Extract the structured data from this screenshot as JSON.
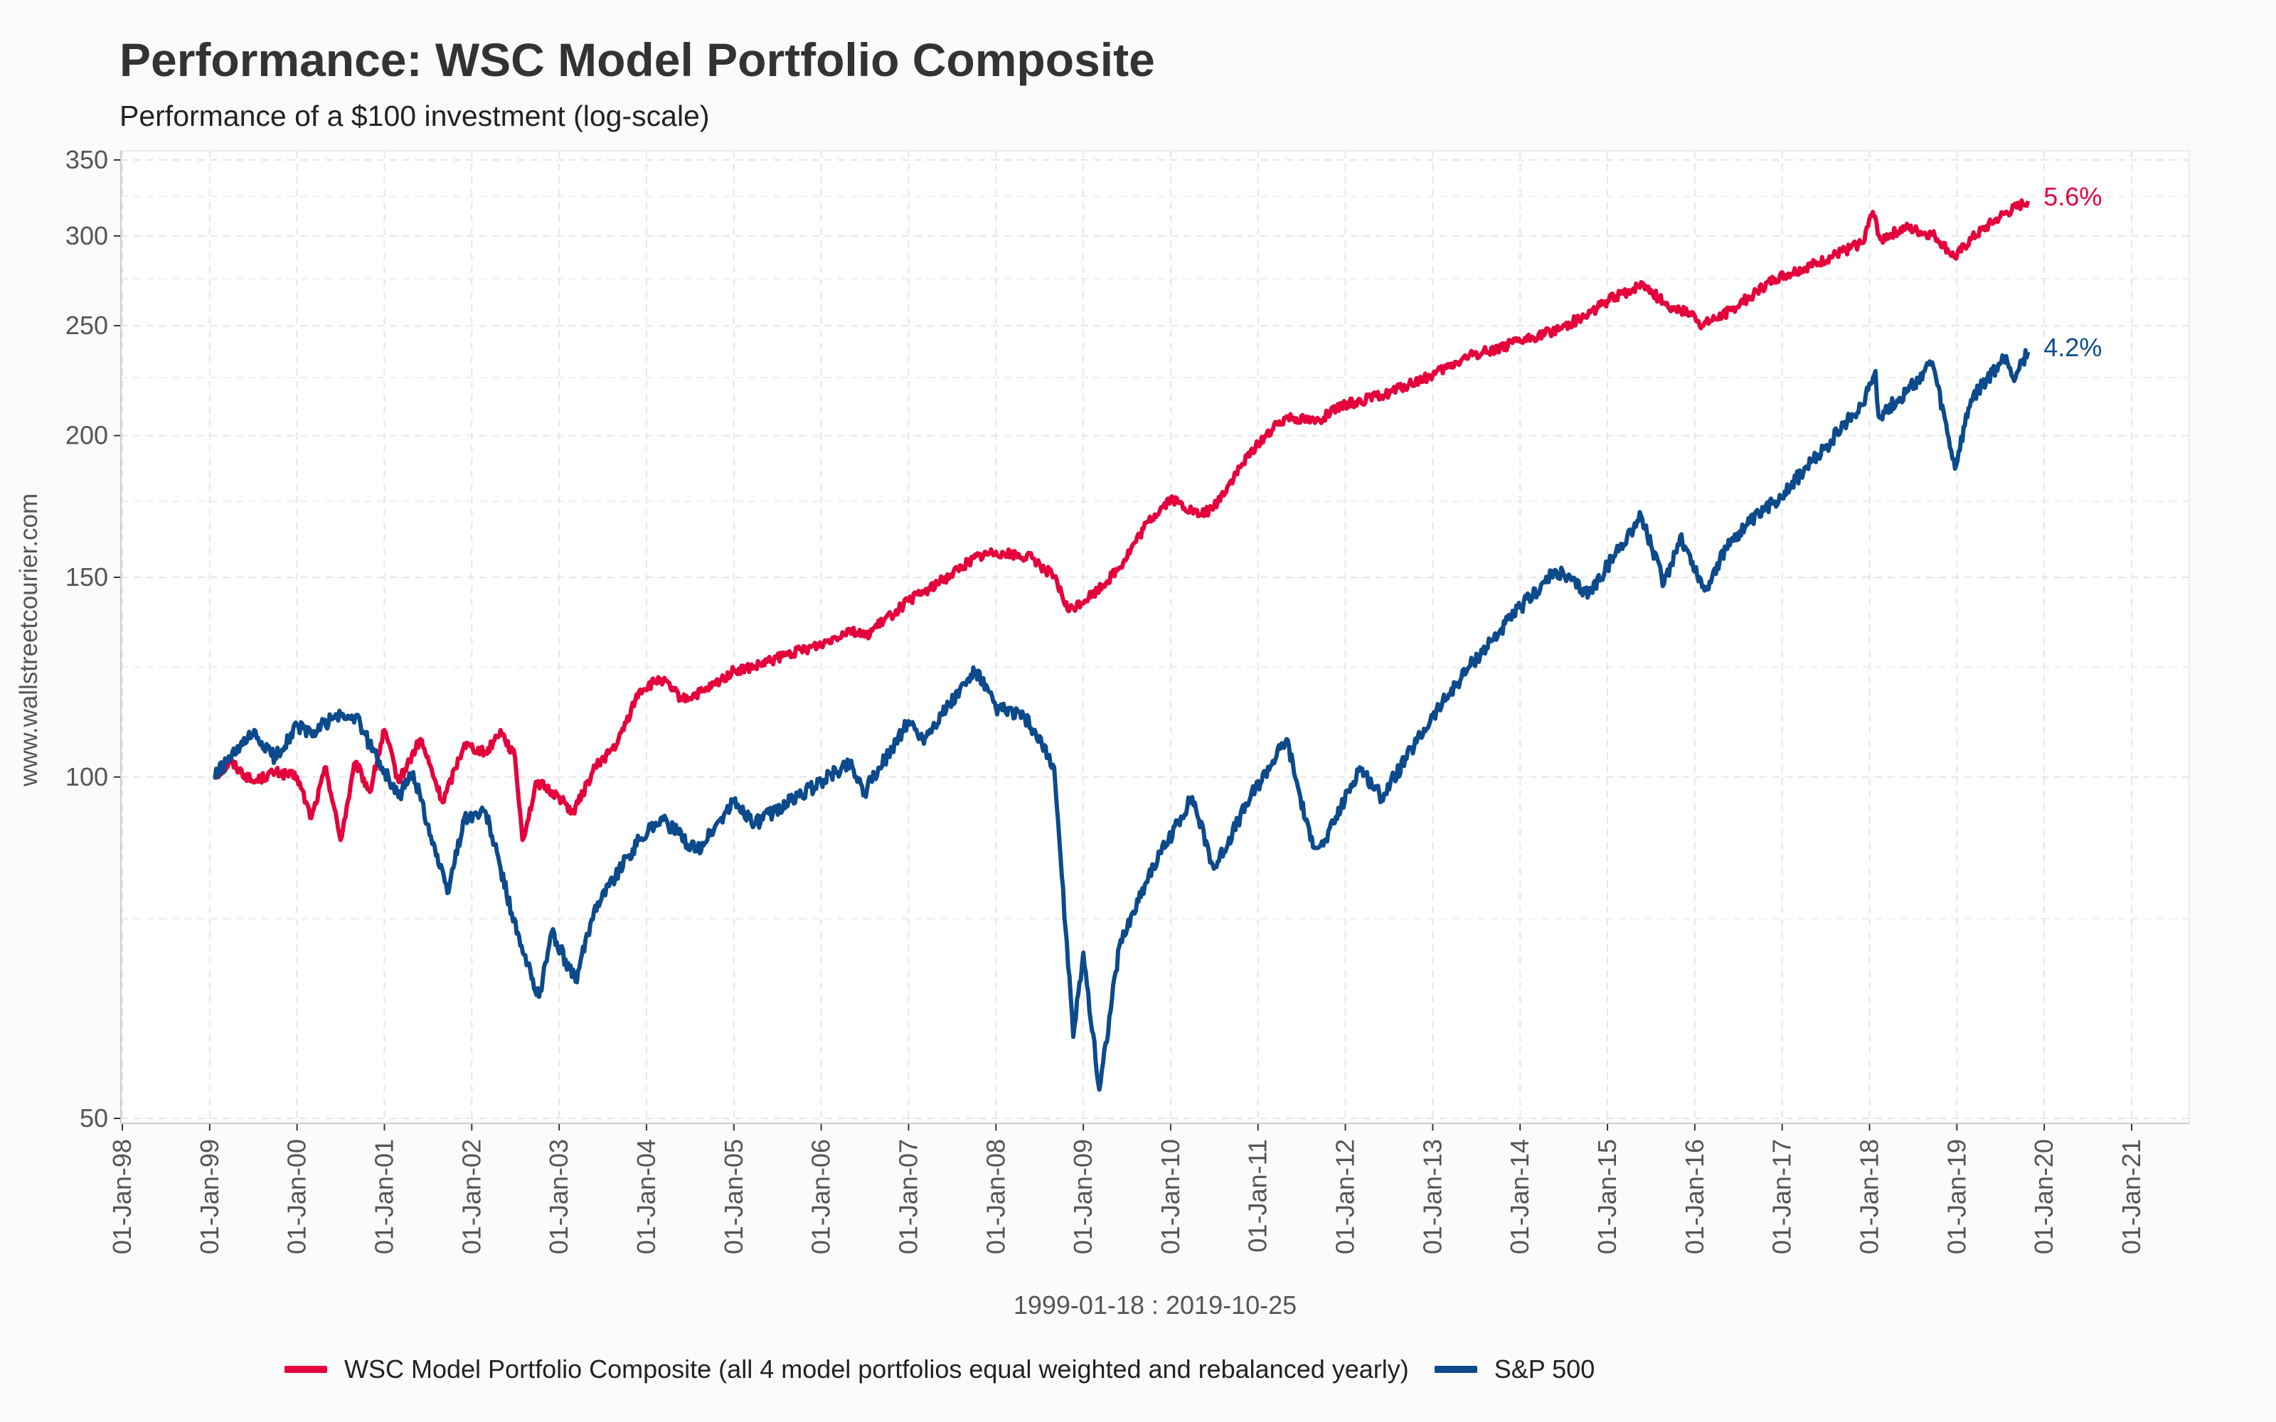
{
  "header": {
    "title": "Performance: WSC Model Portfolio Composite",
    "subtitle": "Performance of a $100 investment (log-scale)"
  },
  "chart_data": {
    "type": "line",
    "title": "Performance: WSC Model Portfolio Composite",
    "subtitle": "Performance of a $100 investment (log-scale)",
    "xlabel": "1999-01-18 : 2019-10-25",
    "ylabel": "www.wallstreetcourier.com",
    "y_scale": "log",
    "ylim": [
      50,
      350
    ],
    "xlim": [
      1998.0,
      2021.0
    ],
    "grid": true,
    "legend_position": "bottom",
    "y_ticks": [
      50,
      100,
      150,
      200,
      250,
      300,
      350
    ],
    "y_tick_labels": [
      "50",
      "100",
      "150",
      "200",
      "250",
      "300",
      "350"
    ],
    "y_minor_ticks": [
      75,
      125,
      175,
      225,
      275,
      325
    ],
    "x_tick_labels": [
      "01-Jan-98",
      "01-Jan-99",
      "01-Jan-00",
      "01-Jan-01",
      "01-Jan-02",
      "01-Jan-03",
      "01-Jan-04",
      "01-Jan-05",
      "01-Jan-06",
      "01-Jan-07",
      "01-Jan-08",
      "01-Jan-09",
      "01-Jan-10",
      "01-Jan-11",
      "01-Jan-12",
      "01-Jan-13",
      "01-Jan-14",
      "01-Jan-15",
      "01-Jan-16",
      "01-Jan-17",
      "01-Jan-18",
      "01-Jan-19",
      "01-Jan-20",
      "01-Jan-21"
    ],
    "series": [
      {
        "name": "WSC Model Portfolio Composite (all 4 model portfolios equal weighted and rebalanced yearly)",
        "color": "#e4003b",
        "end_label": "5.6%",
        "points": [
          [
            "1999-01-18",
            100
          ],
          [
            "1999-04-01",
            103
          ],
          [
            "1999-07-01",
            99
          ],
          [
            "1999-10-01",
            101
          ],
          [
            "2000-01-01",
            100
          ],
          [
            "2000-03-01",
            92
          ],
          [
            "2000-05-01",
            102
          ],
          [
            "2000-07-01",
            88
          ],
          [
            "2000-09-01",
            103
          ],
          [
            "2000-11-01",
            97
          ],
          [
            "2001-01-01",
            110
          ],
          [
            "2001-03-01",
            99
          ],
          [
            "2001-06-01",
            108
          ],
          [
            "2001-09-01",
            95
          ],
          [
            "2001-12-01",
            107
          ],
          [
            "2002-03-01",
            105
          ],
          [
            "2002-05-01",
            110
          ],
          [
            "2002-07-01",
            104
          ],
          [
            "2002-08-01",
            88
          ],
          [
            "2002-10-01",
            99
          ],
          [
            "2003-01-01",
            96
          ],
          [
            "2003-03-01",
            93
          ],
          [
            "2003-06-01",
            102
          ],
          [
            "2003-09-01",
            107
          ],
          [
            "2003-12-01",
            119
          ],
          [
            "2004-03-01",
            122
          ],
          [
            "2004-06-01",
            117
          ],
          [
            "2004-09-01",
            119
          ],
          [
            "2005-01-01",
            124
          ],
          [
            "2005-04-01",
            125
          ],
          [
            "2005-08-01",
            128
          ],
          [
            "2006-01-01",
            131
          ],
          [
            "2006-05-01",
            135
          ],
          [
            "2006-07-01",
            133
          ],
          [
            "2007-01-01",
            143
          ],
          [
            "2007-05-01",
            148
          ],
          [
            "2007-10-01",
            156
          ],
          [
            "2008-01-01",
            158
          ],
          [
            "2008-06-01",
            156
          ],
          [
            "2008-09-01",
            150
          ],
          [
            "2008-11-01",
            140
          ],
          [
            "2009-03-01",
            146
          ],
          [
            "2009-06-01",
            153
          ],
          [
            "2009-10-01",
            168
          ],
          [
            "2010-01-01",
            176
          ],
          [
            "2010-05-01",
            170
          ],
          [
            "2010-07-01",
            173
          ],
          [
            "2010-10-01",
            185
          ],
          [
            "2011-01-01",
            197
          ],
          [
            "2011-05-01",
            208
          ],
          [
            "2011-09-01",
            206
          ],
          [
            "2012-01-01",
            213
          ],
          [
            "2012-06-01",
            217
          ],
          [
            "2013-01-01",
            226
          ],
          [
            "2013-06-01",
            235
          ],
          [
            "2014-01-01",
            242
          ],
          [
            "2014-06-01",
            248
          ],
          [
            "2014-10-01",
            255
          ],
          [
            "2015-01-01",
            263
          ],
          [
            "2015-06-01",
            272
          ],
          [
            "2015-09-01",
            261
          ],
          [
            "2016-01-01",
            255
          ],
          [
            "2016-02-01",
            250
          ],
          [
            "2016-06-01",
            258
          ],
          [
            "2016-12-01",
            275
          ],
          [
            "2017-06-01",
            284
          ],
          [
            "2017-12-01",
            296
          ],
          [
            "2018-01-15",
            315
          ],
          [
            "2018-02-15",
            298
          ],
          [
            "2018-06-01",
            305
          ],
          [
            "2018-10-01",
            300
          ],
          [
            "2018-12-24",
            287
          ],
          [
            "2019-03-01",
            298
          ],
          [
            "2019-07-01",
            312
          ],
          [
            "2019-10-25",
            322
          ]
        ]
      },
      {
        "name": "S&P 500",
        "color": "#0c4a8c",
        "end_label": "4.2%",
        "points": [
          [
            "1999-01-18",
            100
          ],
          [
            "1999-04-01",
            104
          ],
          [
            "1999-07-01",
            109
          ],
          [
            "1999-10-01",
            104
          ],
          [
            "2000-01-01",
            111
          ],
          [
            "2000-03-01",
            109
          ],
          [
            "2000-06-01",
            113
          ],
          [
            "2000-09-01",
            113
          ],
          [
            "2000-12-01",
            104
          ],
          [
            "2001-03-01",
            96
          ],
          [
            "2001-05-01",
            101
          ],
          [
            "2001-09-21",
            79
          ],
          [
            "2001-12-01",
            92
          ],
          [
            "2002-03-01",
            93
          ],
          [
            "2002-07-23",
            71
          ],
          [
            "2002-10-09",
            64
          ],
          [
            "2002-12-01",
            73
          ],
          [
            "2003-03-11",
            66
          ],
          [
            "2003-06-01",
            77
          ],
          [
            "2003-12-01",
            88
          ],
          [
            "2004-03-01",
            92
          ],
          [
            "2004-08-01",
            86
          ],
          [
            "2005-01-01",
            95
          ],
          [
            "2005-04-01",
            91
          ],
          [
            "2006-01-01",
            99
          ],
          [
            "2006-05-01",
            103
          ],
          [
            "2006-07-01",
            97
          ],
          [
            "2007-01-01",
            112
          ],
          [
            "2007-03-01",
            108
          ],
          [
            "2007-10-09",
            124
          ],
          [
            "2008-01-01",
            115
          ],
          [
            "2008-05-01",
            113
          ],
          [
            "2008-09-01",
            102
          ],
          [
            "2008-11-20",
            59
          ],
          [
            "2009-01-01",
            70
          ],
          [
            "2009-03-09",
            53
          ],
          [
            "2009-06-01",
            71
          ],
          [
            "2009-10-01",
            82
          ],
          [
            "2010-04-01",
            96
          ],
          [
            "2010-07-01",
            83
          ],
          [
            "2010-12-01",
            96
          ],
          [
            "2011-04-30",
            108
          ],
          [
            "2011-08-08",
            88
          ],
          [
            "2011-10-01",
            87
          ],
          [
            "2012-03-01",
            102
          ],
          [
            "2012-06-01",
            96
          ],
          [
            "2013-01-01",
            113
          ],
          [
            "2013-06-01",
            125
          ],
          [
            "2014-01-01",
            141
          ],
          [
            "2014-06-01",
            152
          ],
          [
            "2014-10-15",
            145
          ],
          [
            "2015-05-21",
            170
          ],
          [
            "2015-08-25",
            148
          ],
          [
            "2015-11-01",
            163
          ],
          [
            "2016-02-11",
            146
          ],
          [
            "2016-06-01",
            162
          ],
          [
            "2016-12-01",
            175
          ],
          [
            "2017-06-01",
            192
          ],
          [
            "2017-12-01",
            213
          ],
          [
            "2018-01-26",
            228
          ],
          [
            "2018-02-08",
            208
          ],
          [
            "2018-06-01",
            218
          ],
          [
            "2018-09-20",
            232
          ],
          [
            "2018-12-24",
            187
          ],
          [
            "2019-03-01",
            215
          ],
          [
            "2019-07-26",
            235
          ],
          [
            "2019-08-23",
            225
          ],
          [
            "2019-10-25",
            237
          ]
        ]
      }
    ]
  }
}
